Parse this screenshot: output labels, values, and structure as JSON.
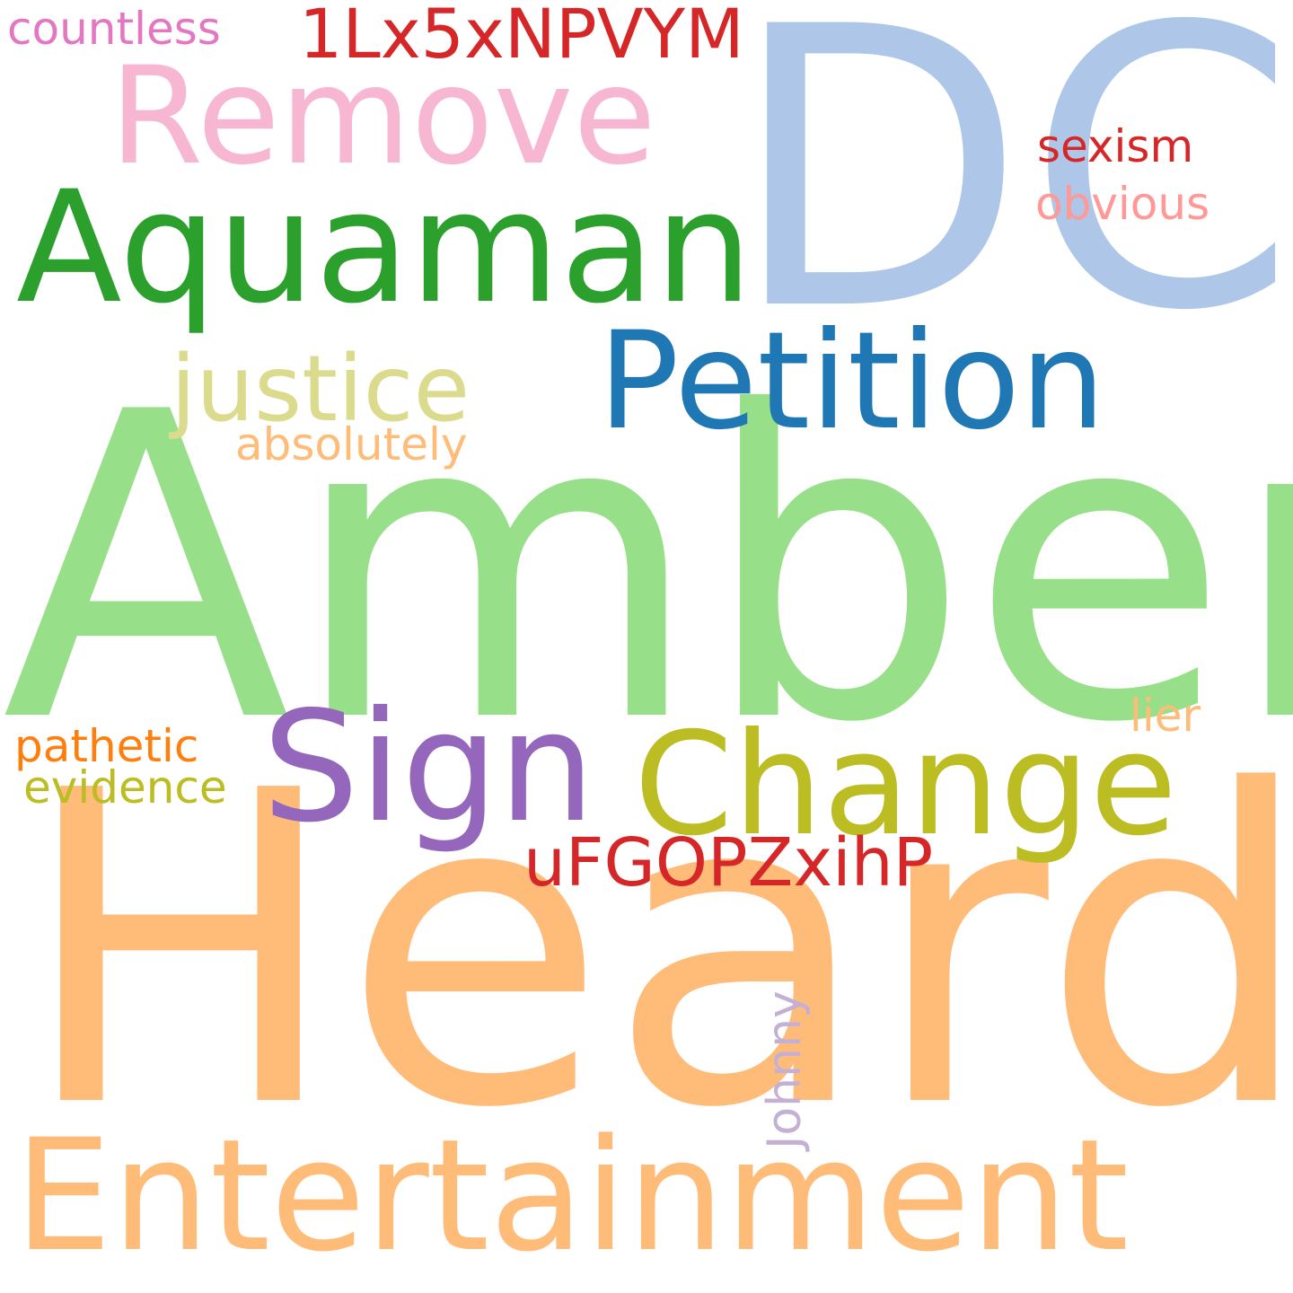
{
  "cloud": {
    "background": "#ffffff",
    "words": {
      "dc": {
        "text": "DC",
        "color": "#aec7e8"
      },
      "amber": {
        "text": "Amber",
        "color": "#98df8a"
      },
      "heard": {
        "text": "Heard",
        "color": "#ffbb78"
      },
      "remove": {
        "text": "Remove",
        "color": "#f7b6d2"
      },
      "aquaman": {
        "text": "Aquaman",
        "color": "#2ca02c"
      },
      "petition": {
        "text": "Petition",
        "color": "#1f77b4"
      },
      "entertainment": {
        "text": "Entertainment",
        "color": "#ffbb78"
      },
      "sign": {
        "text": "Sign",
        "color": "#9467bd"
      },
      "change": {
        "text": "Change",
        "color": "#bcbd22"
      },
      "justice": {
        "text": "justice",
        "color": "#dbdb8d"
      },
      "code1": {
        "text": "1Lx5xNPVYM",
        "color": "#d62728"
      },
      "countless": {
        "text": "countless",
        "color": "#e377c2"
      },
      "sexism": {
        "text": "sexism",
        "color": "#d62728"
      },
      "obvious": {
        "text": "obvious",
        "color": "#ff9896"
      },
      "absolutely": {
        "text": "absolutely",
        "color": "#ffbb78"
      },
      "pathetic": {
        "text": "pathetic",
        "color": "#ff7f0e"
      },
      "evidence": {
        "text": "evidence",
        "color": "#bcbd22"
      },
      "code2": {
        "text": "uFGOPZxihP",
        "color": "#d62728"
      },
      "lier": {
        "text": "lier",
        "color": "#ffbb78"
      },
      "johnny": {
        "text": "Johnny",
        "color": "#c5b0d5"
      }
    }
  }
}
